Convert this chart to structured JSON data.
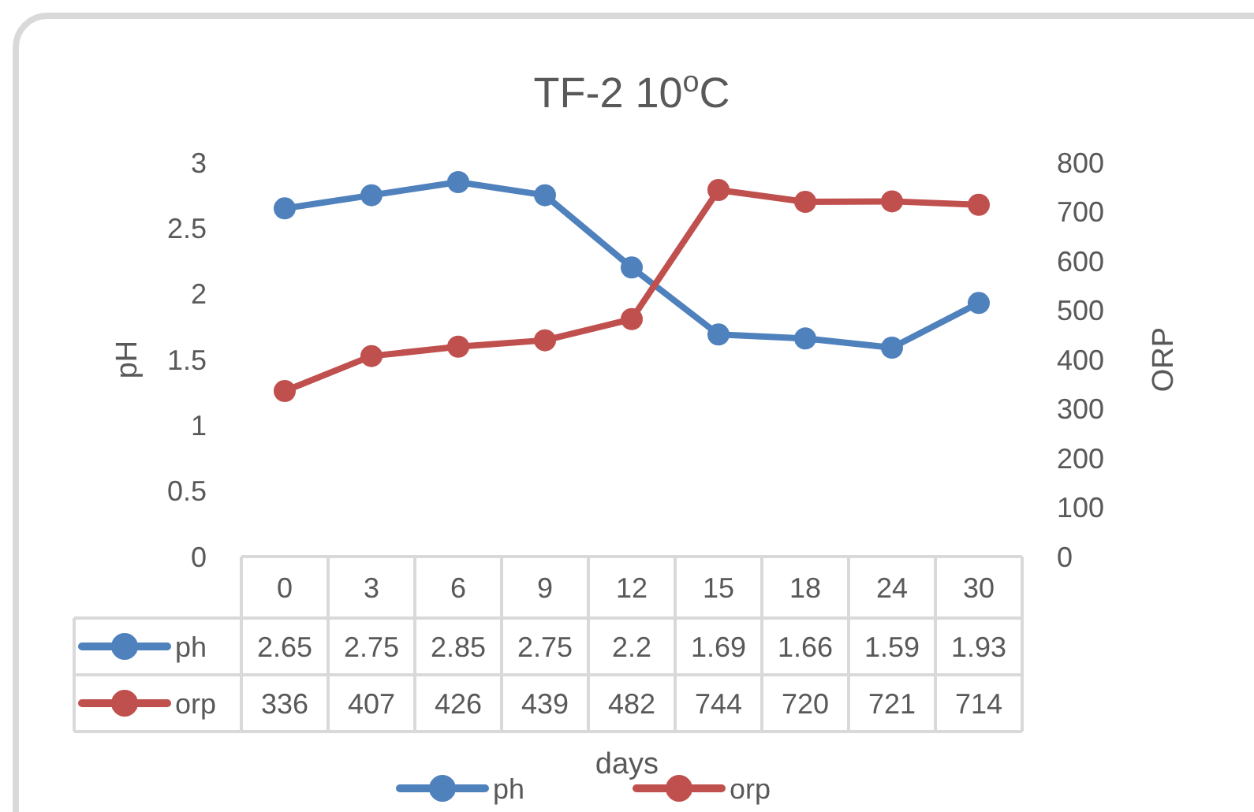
{
  "chart_data": {
    "type": "line",
    "title": "TF-2 10$^{o}$C",
    "xlabel": "days",
    "ylabel": "pH",
    "y2label": "ORP",
    "categories": [
      "0",
      "3",
      "6",
      "9",
      "12",
      "15",
      "18",
      "24",
      "30"
    ],
    "series": [
      {
        "name": "ph",
        "color": "#4f81bd",
        "values": [
          2.65,
          2.75,
          2.85,
          2.75,
          2.2,
          1.69,
          1.66,
          1.59,
          1.93
        ]
      },
      {
        "name": "orp",
        "color": "#c0504d",
        "axis": "y2",
        "values": [
          336,
          407,
          426,
          439,
          482,
          744,
          720,
          721,
          714
        ]
      }
    ],
    "ylim": [
      0,
      3
    ],
    "yticks": [
      0,
      0.5,
      1,
      1.5,
      2,
      2.5,
      3
    ],
    "y2lim": [
      0,
      800
    ],
    "y2ticks": [
      0,
      100,
      200,
      300,
      400,
      500,
      600,
      700,
      800
    ],
    "marker": "circle",
    "legend": "bottom",
    "data_labels": true
  }
}
